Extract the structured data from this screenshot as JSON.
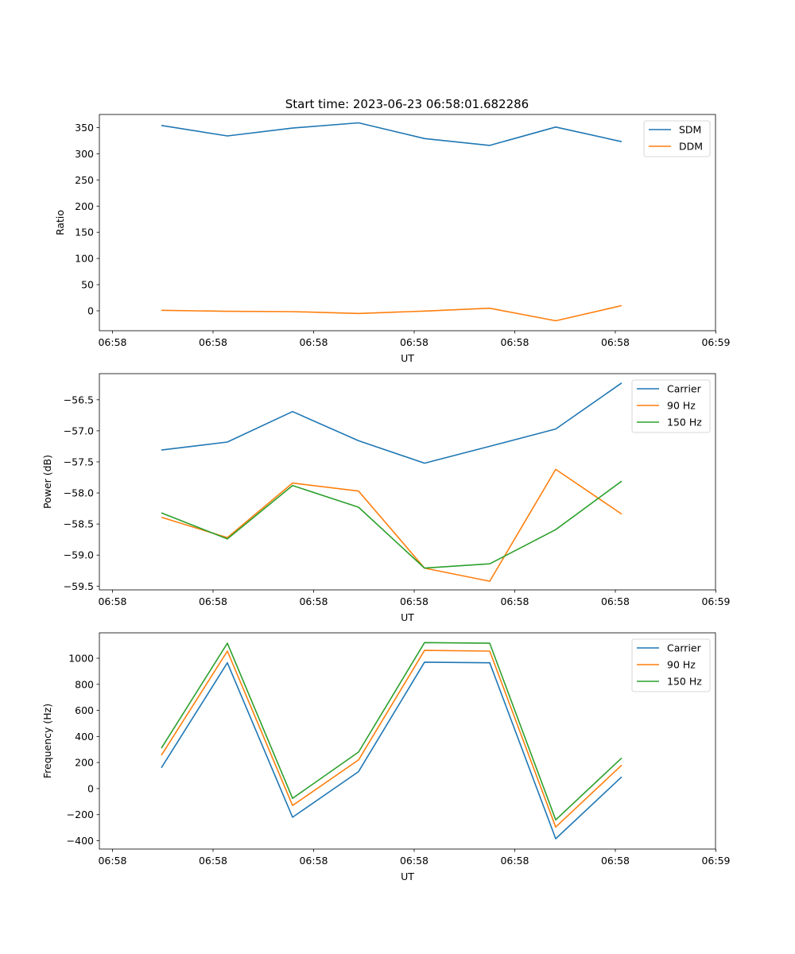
{
  "figure": {
    "title": "Start time: 2023-06-23 06:58:01.682286"
  },
  "chart_data": [
    {
      "type": "line",
      "title": "Start time: 2023-06-23 06:58:01.682286",
      "xlabel": "UT",
      "ylabel": "Ratio",
      "x_tick_labels": [
        "06:58",
        "06:58",
        "06:58",
        "06:58",
        "06:58",
        "06:58",
        "06:59"
      ],
      "y_ticks": [
        0,
        50,
        100,
        150,
        200,
        250,
        300,
        350
      ],
      "ylim": [
        -38,
        375
      ],
      "grid": false,
      "legend_position": "top-right",
      "x_index": [
        0,
        1,
        2,
        3,
        4,
        5,
        6,
        7
      ],
      "series": [
        {
          "name": "SDM",
          "color": "#1f77b4",
          "values": [
            354,
            334,
            349,
            359,
            329,
            316,
            351,
            323
          ]
        },
        {
          "name": "DDM",
          "color": "#ff7f0e",
          "values": [
            1,
            -1,
            -1.5,
            -5,
            -0.5,
            5,
            -19,
            10
          ]
        }
      ]
    },
    {
      "type": "line",
      "title": "",
      "xlabel": "UT",
      "ylabel": "Power (dB)",
      "x_tick_labels": [
        "06:58",
        "06:58",
        "06:58",
        "06:58",
        "06:58",
        "06:58",
        "06:59"
      ],
      "y_ticks": [
        -59.5,
        -59.0,
        -58.5,
        -58.0,
        -57.5,
        -57.0,
        -56.5
      ],
      "y_tick_labels": [
        "−59.5",
        "−59.0",
        "−58.5",
        "−58.0",
        "−57.5",
        "−57.0",
        "−56.5"
      ],
      "ylim": [
        -59.56,
        -56.08
      ],
      "grid": false,
      "legend_position": "top-right",
      "x_index": [
        0,
        1,
        2,
        3,
        4,
        5,
        6,
        7
      ],
      "series": [
        {
          "name": "Carrier",
          "color": "#1f77b4",
          "values": [
            -57.31,
            -57.18,
            -56.69,
            -57.16,
            -57.52,
            -57.25,
            -56.97,
            -56.23
          ]
        },
        {
          "name": "90 Hz",
          "color": "#ff7f0e",
          "values": [
            -58.39,
            -58.72,
            -57.84,
            -57.97,
            -59.21,
            -59.42,
            -57.62,
            -58.34
          ]
        },
        {
          "name": "150 Hz",
          "color": "#2ca02c",
          "values": [
            -58.32,
            -58.74,
            -57.88,
            -58.23,
            -59.21,
            -59.14,
            -58.59,
            -57.81
          ]
        }
      ]
    },
    {
      "type": "line",
      "title": "",
      "xlabel": "UT",
      "ylabel": "Frequency (Hz)",
      "x_tick_labels": [
        "06:58",
        "06:58",
        "06:58",
        "06:58",
        "06:58",
        "06:58",
        "06:59"
      ],
      "y_ticks": [
        -400,
        -200,
        0,
        200,
        400,
        600,
        800,
        1000
      ],
      "y_tick_labels": [
        "−400",
        "−200",
        "0",
        "200",
        "400",
        "600",
        "800",
        "1000"
      ],
      "ylim": [
        -464,
        1195
      ],
      "grid": false,
      "legend_position": "top-right",
      "x_index": [
        0,
        1,
        2,
        3,
        4,
        5,
        6,
        7
      ],
      "series": [
        {
          "name": "Carrier",
          "color": "#1f77b4",
          "values": [
            160,
            965,
            -220,
            130,
            970,
            965,
            -385,
            90
          ]
        },
        {
          "name": "90 Hz",
          "color": "#ff7f0e",
          "values": [
            255,
            1055,
            -130,
            220,
            1060,
            1055,
            -295,
            180
          ]
        },
        {
          "name": "150 Hz",
          "color": "#2ca02c",
          "values": [
            310,
            1115,
            -75,
            280,
            1120,
            1115,
            -240,
            235
          ]
        }
      ]
    }
  ]
}
